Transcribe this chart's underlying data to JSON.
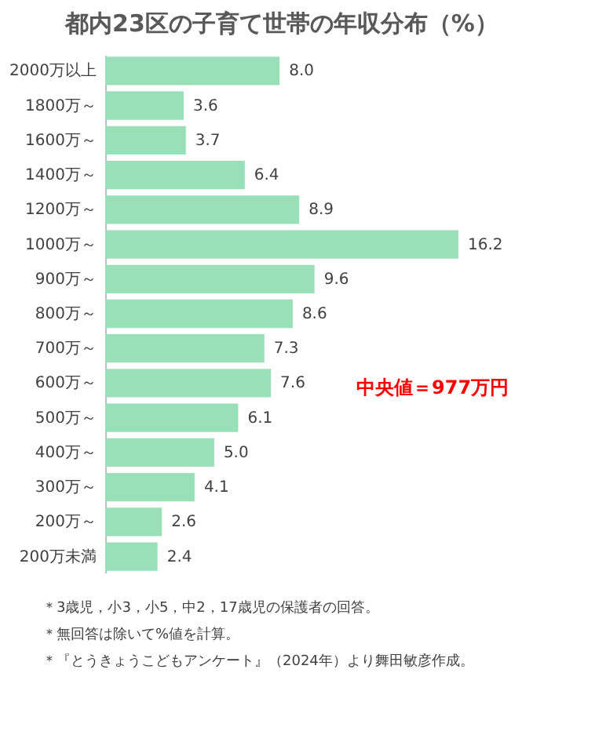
{
  "chart_data": {
    "type": "bar",
    "orientation": "horizontal",
    "title": "都内23区の子育て世帯の年収分布（%）",
    "categories": [
      "2000万以上",
      "1800万～",
      "1600万～",
      "1400万～",
      "1200万～",
      "1000万～",
      "900万～",
      "800万～",
      "700万～",
      "600万～",
      "500万～",
      "400万～",
      "300万～",
      "200万～",
      "200万未満"
    ],
    "values": [
      8.0,
      3.6,
      3.7,
      6.4,
      8.9,
      16.2,
      9.6,
      8.6,
      7.3,
      7.6,
      6.1,
      5.0,
      4.1,
      2.6,
      2.4
    ],
    "color": "#99dfb8",
    "value_labels": [
      "8.0",
      "3.6",
      "3.7",
      "6.4",
      "8.9",
      "16.2",
      "9.6",
      "8.6",
      "7.3",
      "7.6",
      "6.1",
      "5.0",
      "4.1",
      "2.6",
      "2.4"
    ],
    "annotations": [
      "中央値＝977万円",
      "＊3歳児，小3，小5，中2，17歳児の保護者の回答。",
      "＊無回答は除いて%値を計算。",
      "＊『とうきょうこどもアンケート』（2024年）より舞田敏彦作成。"
    ]
  }
}
